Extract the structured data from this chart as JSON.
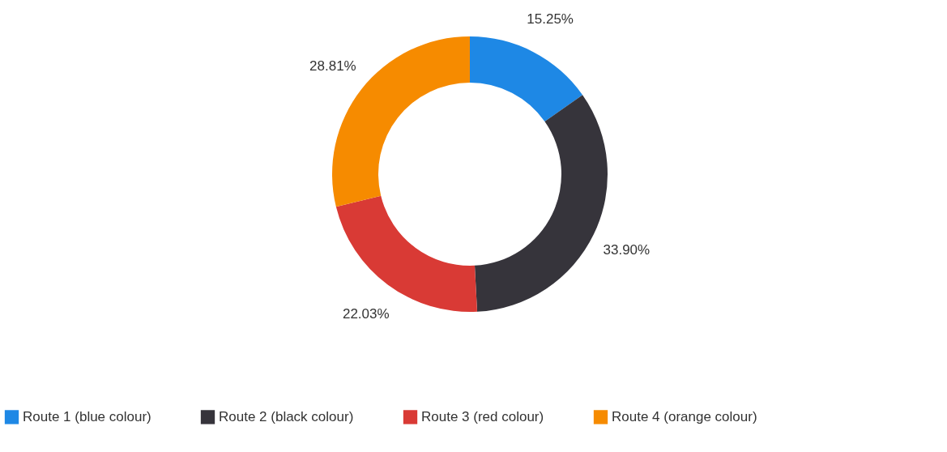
{
  "chart_data": {
    "type": "donut",
    "categories": [
      "Route 1 (blue colour)",
      "Route 2 (black colour)",
      "Route 3 (red colour)",
      "Route 4 (orange colour)"
    ],
    "values": [
      15.25,
      33.9,
      22.03,
      28.81
    ],
    "colors": [
      "#1e88e5",
      "#36343b",
      "#d93a35",
      "#f68b00"
    ],
    "value_labels": [
      "15.25%",
      "33.90%",
      "22.03%",
      "28.81%"
    ],
    "legend": "bottom"
  }
}
